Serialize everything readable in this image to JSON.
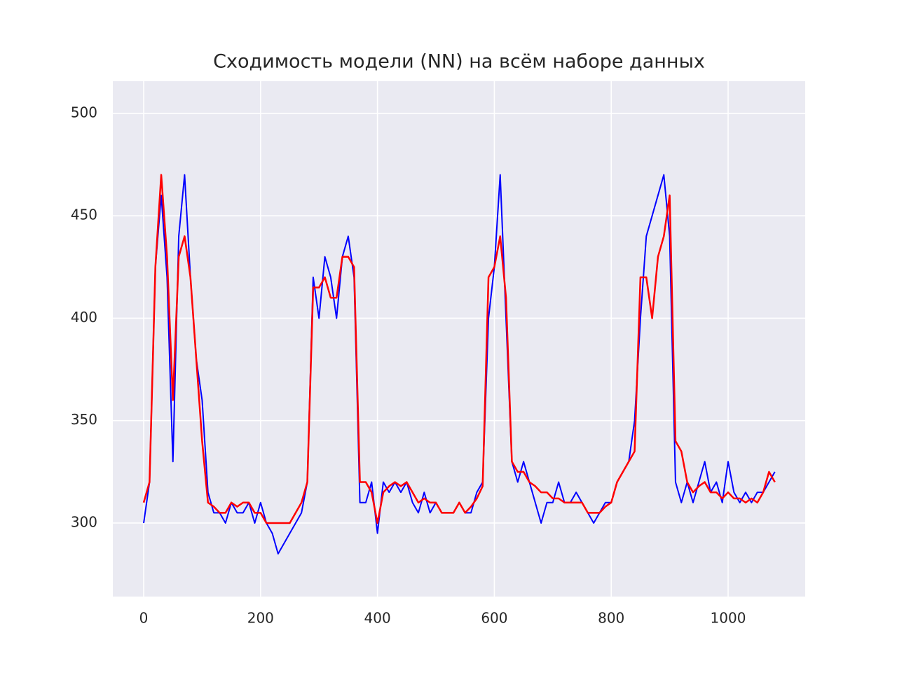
{
  "chart_data": {
    "type": "line",
    "title": "Сходимость модели (NN) на всём наборе данных",
    "x": [
      0,
      10,
      20,
      30,
      40,
      50,
      60,
      70,
      80,
      90,
      100,
      110,
      120,
      130,
      140,
      150,
      160,
      170,
      180,
      190,
      200,
      210,
      220,
      230,
      240,
      250,
      260,
      270,
      280,
      290,
      300,
      310,
      320,
      330,
      340,
      350,
      360,
      370,
      380,
      390,
      400,
      410,
      420,
      430,
      440,
      450,
      460,
      470,
      480,
      490,
      500,
      510,
      520,
      530,
      540,
      550,
      560,
      570,
      580,
      590,
      600,
      610,
      620,
      630,
      640,
      650,
      660,
      670,
      680,
      690,
      700,
      710,
      720,
      730,
      740,
      750,
      760,
      770,
      780,
      790,
      800,
      810,
      820,
      830,
      840,
      850,
      860,
      870,
      880,
      890,
      900,
      910,
      920,
      930,
      940,
      950,
      960,
      970,
      980,
      990,
      1000,
      1010,
      1020,
      1030,
      1040,
      1050,
      1060,
      1070,
      1080
    ],
    "series": [
      {
        "color": "#0000ff",
        "values": [
          300,
          320,
          425,
          460,
          420,
          330,
          440,
          470,
          420,
          380,
          360,
          315,
          305,
          305,
          300,
          310,
          305,
          305,
          310,
          300,
          310,
          300,
          295,
          285,
          290,
          295,
          300,
          305,
          320,
          420,
          400,
          430,
          420,
          400,
          430,
          440,
          420,
          310,
          310,
          320,
          295,
          320,
          315,
          320,
          315,
          320,
          310,
          305,
          315,
          305,
          310,
          305,
          305,
          305,
          310,
          305,
          305,
          315,
          320,
          400,
          425,
          470,
          400,
          330,
          320,
          330,
          320,
          310,
          300,
          310,
          310,
          320,
          310,
          310,
          315,
          310,
          305,
          300,
          305,
          310,
          310,
          320,
          325,
          330,
          350,
          400,
          440,
          450,
          460,
          470,
          440,
          320,
          310,
          320,
          310,
          320,
          330,
          315,
          320,
          310,
          330,
          315,
          310,
          315,
          310,
          315,
          315,
          320,
          325
        ]
      },
      {
        "color": "#ff0000",
        "values": [
          310,
          320,
          425,
          470,
          430,
          360,
          430,
          440,
          420,
          380,
          340,
          310,
          308,
          305,
          305,
          310,
          308,
          310,
          310,
          305,
          305,
          300,
          300,
          300,
          300,
          300,
          305,
          310,
          320,
          415,
          415,
          420,
          410,
          410,
          430,
          430,
          425,
          320,
          320,
          315,
          300,
          315,
          318,
          320,
          318,
          320,
          315,
          310,
          312,
          310,
          310,
          305,
          305,
          305,
          310,
          305,
          308,
          312,
          318,
          420,
          425,
          440,
          410,
          330,
          325,
          325,
          320,
          318,
          315,
          315,
          312,
          312,
          310,
          310,
          310,
          310,
          305,
          305,
          305,
          308,
          310,
          320,
          325,
          330,
          335,
          420,
          420,
          400,
          430,
          440,
          460,
          340,
          335,
          320,
          315,
          318,
          320,
          315,
          315,
          312,
          315,
          312,
          312,
          310,
          312,
          310,
          315,
          325,
          320
        ]
      }
    ],
    "xlim": [
      -52.8,
      1131.9
    ],
    "ylim": [
      264.1,
      515.7
    ],
    "xticks": [
      0,
      200,
      400,
      600,
      800,
      1000
    ],
    "yticks": [
      300,
      350,
      400,
      450,
      500
    ],
    "grid": true
  }
}
